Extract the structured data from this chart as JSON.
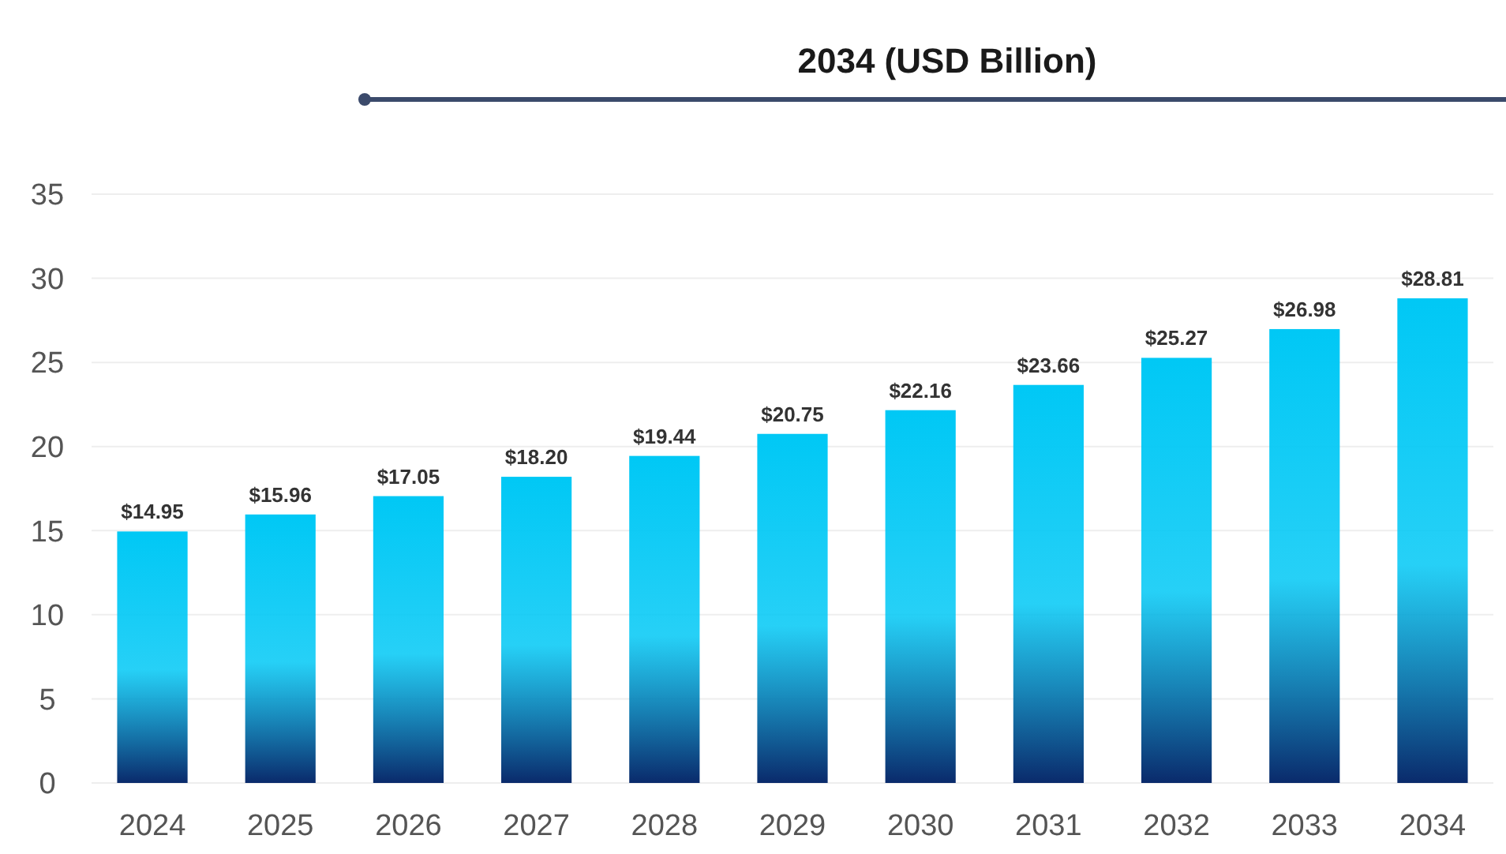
{
  "chart_data": {
    "type": "bar",
    "title": "2034 (USD Billion)",
    "categories": [
      "2024",
      "2025",
      "2026",
      "2027",
      "2028",
      "2029",
      "2030",
      "2031",
      "2032",
      "2033",
      "2034"
    ],
    "values": [
      14.95,
      15.96,
      17.05,
      18.2,
      19.44,
      20.75,
      22.16,
      23.66,
      25.27,
      26.98,
      28.81
    ],
    "value_labels": [
      "$14.95",
      "$15.96",
      "$17.05",
      "$18.20",
      "$19.44",
      "$20.75",
      "$22.16",
      "$23.66",
      "$25.27",
      "$26.98",
      "$28.81"
    ],
    "color": "#00c8f5",
    "ylim": [
      0,
      35
    ],
    "yticks": [
      0,
      5,
      10,
      15,
      20,
      25,
      30,
      35
    ],
    "grid": "y"
  }
}
